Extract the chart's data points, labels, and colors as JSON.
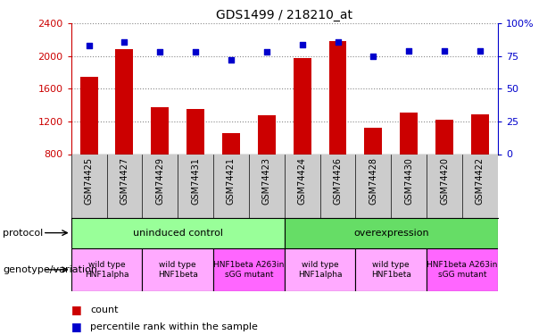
{
  "title": "GDS1499 / 218210_at",
  "samples": [
    "GSM74425",
    "GSM74427",
    "GSM74429",
    "GSM74431",
    "GSM74421",
    "GSM74423",
    "GSM74424",
    "GSM74426",
    "GSM74428",
    "GSM74430",
    "GSM74420",
    "GSM74422"
  ],
  "counts": [
    1750,
    2080,
    1370,
    1350,
    1060,
    1280,
    1980,
    2180,
    1120,
    1310,
    1220,
    1290
  ],
  "percentiles": [
    83,
    86,
    78,
    78,
    72,
    78,
    84,
    86,
    75,
    79,
    79,
    79
  ],
  "ylim_left": [
    800,
    2400
  ],
  "ylim_right": [
    0,
    100
  ],
  "yticks_left": [
    800,
    1200,
    1600,
    2000,
    2400
  ],
  "yticks_right": [
    0,
    25,
    50,
    75,
    100
  ],
  "bar_color": "#cc0000",
  "dot_color": "#0000cc",
  "protocol_groups": [
    {
      "label": "uninduced control",
      "start": 0,
      "end": 6,
      "color": "#99ff99"
    },
    {
      "label": "overexpression",
      "start": 6,
      "end": 12,
      "color": "#66dd66"
    }
  ],
  "genotype_groups": [
    {
      "label": "wild type\nHNF1alpha",
      "start": 0,
      "end": 2,
      "color": "#ffaaff"
    },
    {
      "label": "wild type\nHNF1beta",
      "start": 2,
      "end": 4,
      "color": "#ffaaff"
    },
    {
      "label": "HNF1beta A263in\nsGG mutant",
      "start": 4,
      "end": 6,
      "color": "#ff66ff"
    },
    {
      "label": "wild type\nHNF1alpha",
      "start": 6,
      "end": 8,
      "color": "#ffaaff"
    },
    {
      "label": "wild type\nHNF1beta",
      "start": 8,
      "end": 10,
      "color": "#ffaaff"
    },
    {
      "label": "HNF1beta A263in\nsGG mutant",
      "start": 10,
      "end": 12,
      "color": "#ff66ff"
    }
  ],
  "protocol_label": "protocol",
  "genotype_label": "genotype/variation",
  "legend_count_label": "count",
  "legend_percentile_label": "percentile rank within the sample",
  "dotted_line_color": "#888888",
  "axis_color_left": "#cc0000",
  "axis_color_right": "#0000cc",
  "xtick_bg_color": "#cccccc",
  "bar_bottom": 800
}
